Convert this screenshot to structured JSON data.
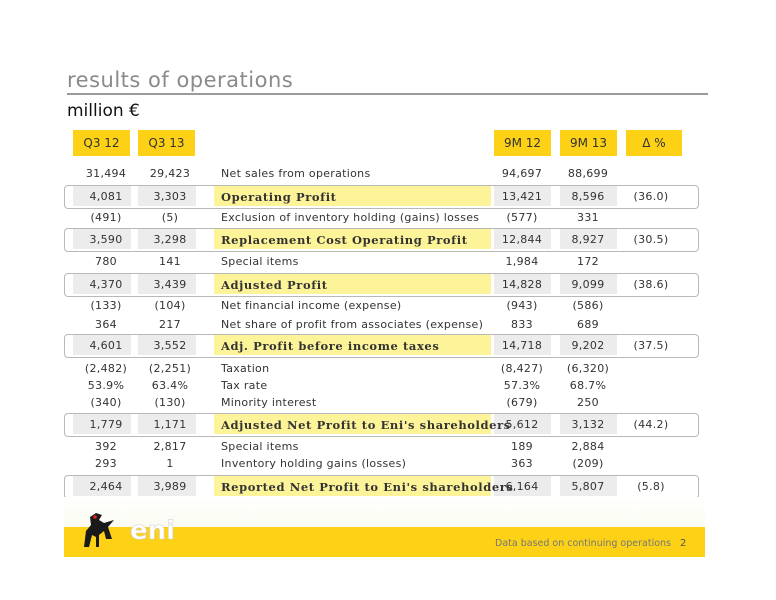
{
  "title": "results of operations",
  "subtitle": "million €",
  "headers": {
    "q3_12": "Q3 12",
    "q3_13": "Q3 13",
    "m9_12": "9M 12",
    "m9_13": "9M 13",
    "delta": "Δ %"
  },
  "rows": [
    {
      "label": "Net sales from operations",
      "q3_12": "31,494",
      "q3_13": "29,423",
      "m9_12": "94,697",
      "m9_13": "88,699",
      "delta": ""
    },
    {
      "label": "Operating Profit",
      "q3_12": "4,081",
      "q3_13": "3,303",
      "m9_12": "13,421",
      "m9_13": "8,596",
      "delta": "(36.0)"
    },
    {
      "label": "Exclusion of inventory holding (gains) losses",
      "q3_12": "(491)",
      "q3_13": "(5)",
      "m9_12": "(577)",
      "m9_13": "331",
      "delta": ""
    },
    {
      "label": "Replacement Cost Operating Profit",
      "q3_12": "3,590",
      "q3_13": "3,298",
      "m9_12": "12,844",
      "m9_13": "8,927",
      "delta": "(30.5)"
    },
    {
      "label": "Special items",
      "q3_12": "780",
      "q3_13": "141",
      "m9_12": "1,984",
      "m9_13": "172",
      "delta": ""
    },
    {
      "label": "Adjusted Profit",
      "q3_12": "4,370",
      "q3_13": "3,439",
      "m9_12": "14,828",
      "m9_13": "9,099",
      "delta": "(38.6)"
    },
    {
      "label": "Net financial income (expense)",
      "q3_12": "(133)",
      "q3_13": "(104)",
      "m9_12": "(943)",
      "m9_13": "(586)",
      "delta": ""
    },
    {
      "label": "Net share of profit from associates (expense)",
      "q3_12": "364",
      "q3_13": "217",
      "m9_12": "833",
      "m9_13": "689",
      "delta": ""
    },
    {
      "label": "Adj. Profit before income taxes",
      "q3_12": "4,601",
      "q3_13": "3,552",
      "m9_12": "14,718",
      "m9_13": "9,202",
      "delta": "(37.5)"
    },
    {
      "label": "Taxation",
      "q3_12": "(2,482)",
      "q3_13": "(2,251)",
      "m9_12": "(8,427)",
      "m9_13": "(6,320)",
      "delta": ""
    },
    {
      "label": "Tax rate",
      "q3_12": "53.9%",
      "q3_13": "63.4%",
      "m9_12": "57.3%",
      "m9_13": "68.7%",
      "delta": ""
    },
    {
      "label": "Minority interest",
      "q3_12": "(340)",
      "q3_13": "(130)",
      "m9_12": "(679)",
      "m9_13": "250",
      "delta": ""
    },
    {
      "label": "Adjusted Net Profit to Eni's shareholders",
      "q3_12": "1,779",
      "q3_13": "1,171",
      "m9_12": "5,612",
      "m9_13": "3,132",
      "delta": "(44.2)"
    },
    {
      "label": "Special items",
      "q3_12": "392",
      "q3_13": "2,817",
      "m9_12": "189",
      "m9_13": "2,884",
      "delta": ""
    },
    {
      "label": "Inventory holding gains (losses)",
      "q3_12": "293",
      "q3_13": "1",
      "m9_12": "363",
      "m9_13": "(209)",
      "delta": ""
    },
    {
      "label": "Reported Net Profit to Eni's shareholders",
      "q3_12": "2,464",
      "q3_13": "3,989",
      "m9_12": "6,164",
      "m9_13": "5,807",
      "delta": "(5.8)"
    }
  ],
  "footer": {
    "note": "Data based on continuing operations",
    "page": "2",
    "logo_text": "eni"
  },
  "colors": {
    "accent": "#fcd116",
    "highlight": "#fdf49a",
    "cell_grey": "#ececec"
  }
}
